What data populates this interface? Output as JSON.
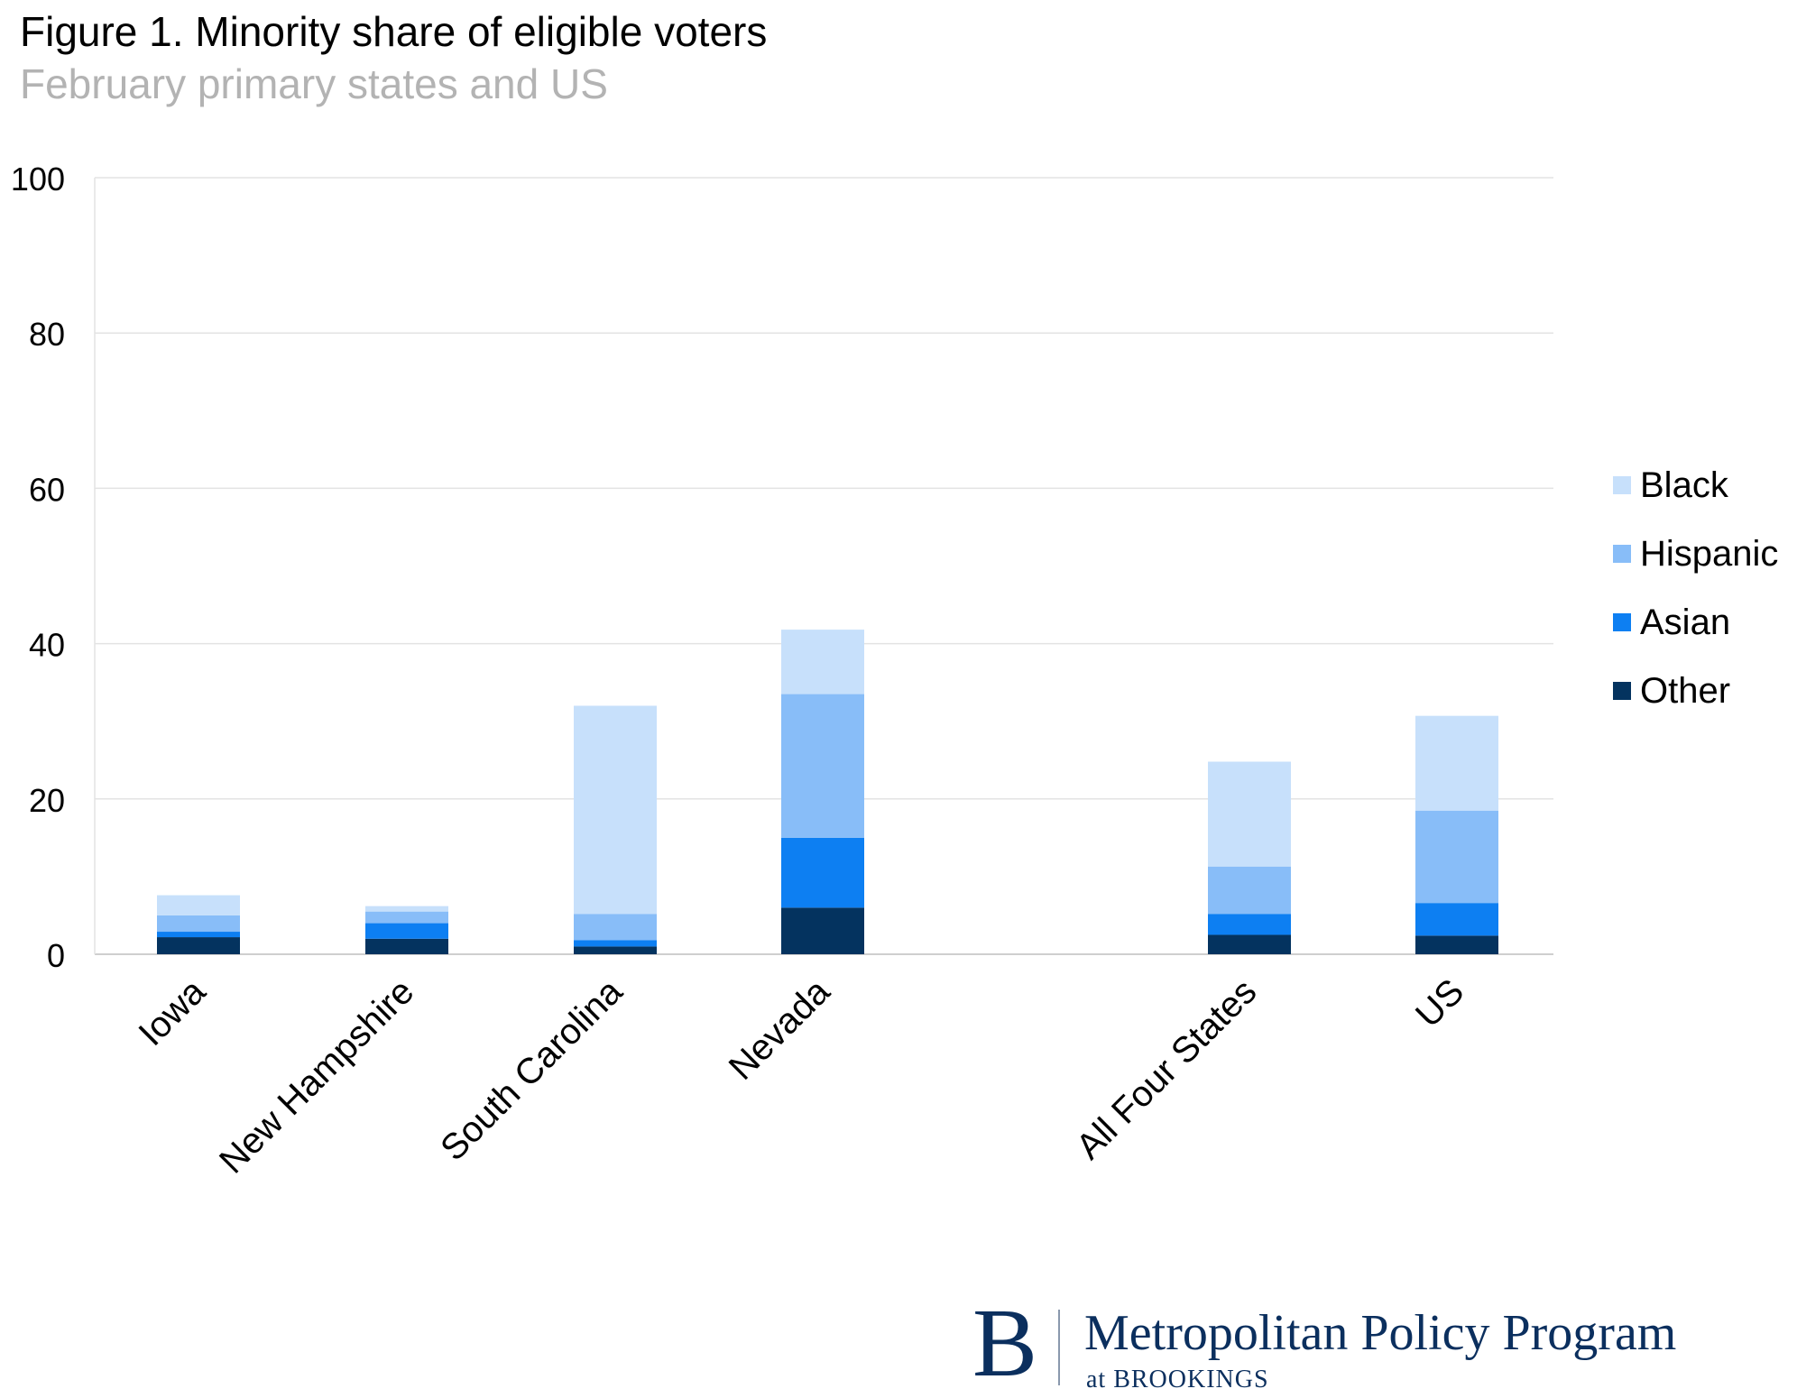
{
  "title": "Figure 1. Minority share of eligible voters",
  "subtitle": "February primary states and US",
  "chart_data": {
    "type": "bar",
    "stacked": true,
    "categories": [
      "Iowa",
      "New Hampshire",
      "South Carolina",
      "Nevada",
      "All Four States",
      "US"
    ],
    "series": [
      {
        "name": "Other",
        "color": "#04335f",
        "values": [
          2.2,
          2.0,
          1.0,
          6.0,
          2.5,
          2.4
        ]
      },
      {
        "name": "Asian",
        "color": "#0d7ff2",
        "values": [
          0.7,
          2.0,
          0.8,
          9.0,
          2.7,
          4.2
        ]
      },
      {
        "name": "Hispanic",
        "color": "#88bdf8",
        "values": [
          2.1,
          1.5,
          3.4,
          18.5,
          6.1,
          11.9
        ]
      },
      {
        "name": "Black",
        "color": "#c7e0fb",
        "values": [
          2.6,
          0.7,
          26.8,
          8.3,
          13.5,
          12.2
        ]
      }
    ],
    "legend_order": [
      "Black",
      "Hispanic",
      "Asian",
      "Other"
    ],
    "legend_position": "right",
    "ylim": [
      0,
      100
    ],
    "yticks": [
      "0",
      "20",
      "40",
      "60",
      "80",
      "100"
    ],
    "grid": true,
    "xlabel": "",
    "ylabel": ""
  },
  "brand": {
    "mark": "B",
    "name": "Metropolitan Policy Program",
    "sub": "at BROOKINGS"
  }
}
